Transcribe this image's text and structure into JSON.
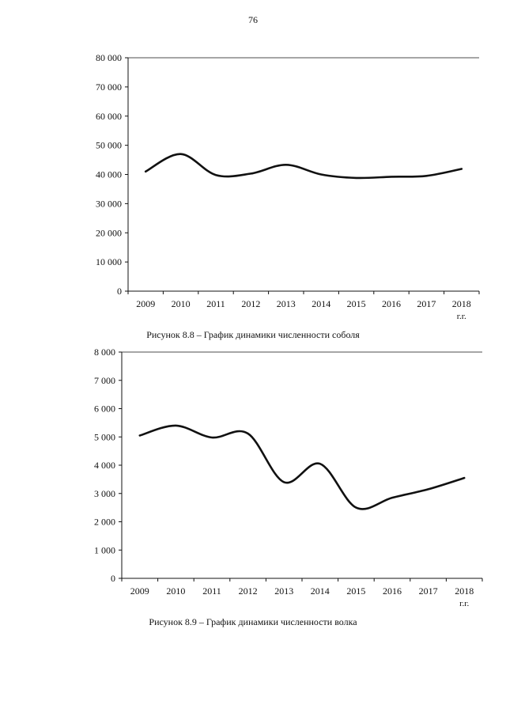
{
  "page": {
    "number": "76"
  },
  "chart_data": [
    {
      "type": "line",
      "caption": "Рисунок 8.8 – График динамики численности соболя",
      "categories": [
        "2009",
        "2010",
        "2011",
        "2012",
        "2013",
        "2014",
        "2015",
        "2016",
        "2017",
        "2018"
      ],
      "x_unit": "г.г.",
      "y_ticks": [
        "0",
        "10 000",
        "20 000",
        "30 000",
        "40 000",
        "50 000",
        "60 000",
        "70 000",
        "80 000"
      ],
      "ylim": [
        0,
        80000
      ],
      "series": [
        {
          "values": [
            41000,
            47000,
            39800,
            40300,
            43300,
            40000,
            38800,
            39200,
            39500,
            41900
          ]
        }
      ],
      "grid": false,
      "smooth": true
    },
    {
      "type": "line",
      "caption": "Рисунок 8.9 – График динамики численности волка",
      "categories": [
        "2009",
        "2010",
        "2011",
        "2012",
        "2013",
        "2014",
        "2015",
        "2016",
        "2017",
        "2018"
      ],
      "x_unit": "г.г.",
      "y_ticks": [
        "0",
        "1 000",
        "2 000",
        "3 000",
        "4 000",
        "5 000",
        "6 000",
        "7 000",
        "8 000"
      ],
      "ylim": [
        0,
        8000
      ],
      "series": [
        {
          "values": [
            5050,
            5400,
            4980,
            5120,
            3400,
            4050,
            2500,
            2850,
            3150,
            3550
          ]
        }
      ],
      "grid": false,
      "smooth": true
    }
  ]
}
